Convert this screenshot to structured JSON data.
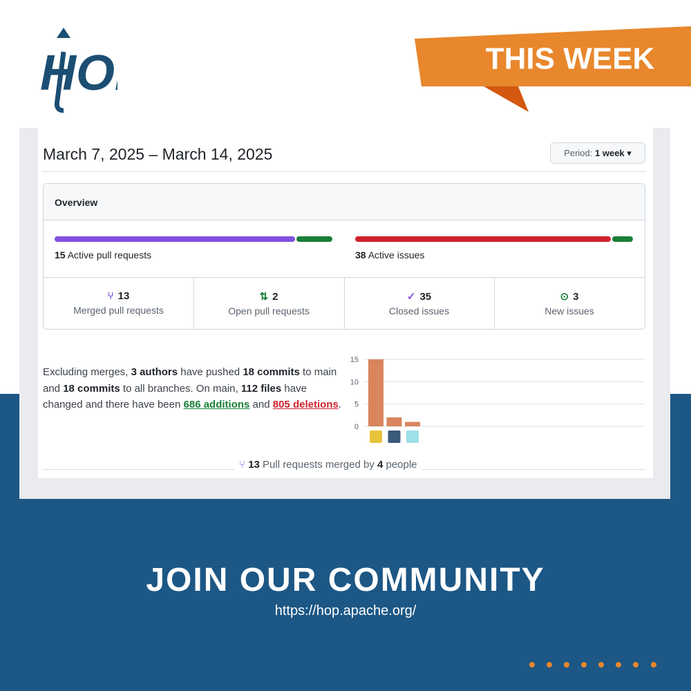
{
  "logo": "HOP",
  "banner": "THIS WEEK",
  "pulse": {
    "date_range": "March 7, 2025 – March 14, 2025",
    "period_label": "Period:",
    "period_value": "1 week",
    "overview_title": "Overview",
    "active_prs": {
      "count": 15,
      "label": "Active pull requests"
    },
    "active_issues": {
      "count": 38,
      "label": "Active issues"
    },
    "stats": [
      {
        "count": 13,
        "label": "Merged pull requests",
        "icon": "merged",
        "color": "#8250df"
      },
      {
        "count": 2,
        "label": "Open pull requests",
        "icon": "open-pr",
        "color": "#1a7f37"
      },
      {
        "count": 35,
        "label": "Closed issues",
        "icon": "closed-issue",
        "color": "#8250df"
      },
      {
        "count": 3,
        "label": "New issues",
        "icon": "new-issue",
        "color": "#1a7f37"
      }
    ],
    "summary": [
      {
        "text": "Excluding merges, ",
        "style": "plain"
      },
      {
        "text": "3 authors",
        "style": "bold"
      },
      {
        "text": " have pushed ",
        "style": "plain"
      },
      {
        "text": "18 commits",
        "style": "bold"
      },
      {
        "text": " to main and ",
        "style": "plain"
      },
      {
        "text": "18 commits",
        "style": "bold"
      },
      {
        "text": " to all branches. On main, ",
        "style": "plain"
      },
      {
        "text": "112 files",
        "style": "bold"
      },
      {
        "text": " have changed and there have been ",
        "style": "plain"
      },
      {
        "text": "686 additions",
        "style": "add"
      },
      {
        "text": " and ",
        "style": "plain"
      },
      {
        "text": "805 deletions",
        "style": "del"
      },
      {
        "text": ".",
        "style": "plain"
      }
    ],
    "commit_chart": {
      "values": [
        15,
        2,
        1
      ],
      "color": "#d9855e",
      "ylim": [
        0,
        15
      ],
      "yticks": [
        0,
        5,
        10,
        15
      ]
    },
    "footer": {
      "count": 13,
      "text1": "Pull requests merged by",
      "people": 4,
      "text2": "people"
    }
  },
  "cta": {
    "title": "JOIN OUR COMMUNITY",
    "url": "https://hop.apache.org/"
  }
}
